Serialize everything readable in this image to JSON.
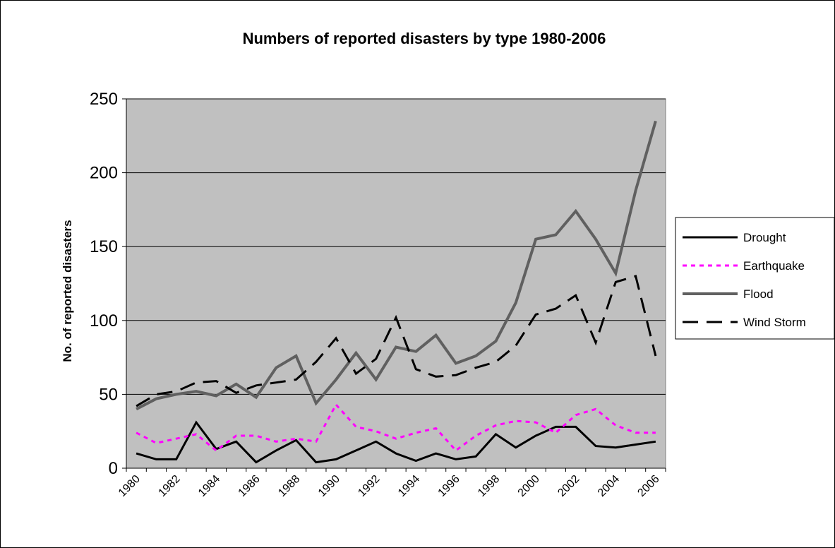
{
  "chart_data": {
    "type": "line",
    "title": "Numbers of reported disasters by type 1980-2006",
    "xlabel": "",
    "ylabel": "No. of reported disasters",
    "ylim": [
      0,
      250
    ],
    "yticks": [
      "0",
      "50",
      "100",
      "150",
      "200",
      "250"
    ],
    "xtick_labels": [
      "1980",
      "1982",
      "1984",
      "1986",
      "1988",
      "1990",
      "1992",
      "1994",
      "1996",
      "1998",
      "2000",
      "2002",
      "2004",
      "2006"
    ],
    "x": [
      1980,
      1981,
      1982,
      1983,
      1984,
      1985,
      1986,
      1987,
      1988,
      1989,
      1990,
      1991,
      1992,
      1993,
      1994,
      1995,
      1996,
      1997,
      1998,
      1999,
      2000,
      2001,
      2002,
      2003,
      2004,
      2005,
      2006
    ],
    "grid": "horizontal",
    "background": "#c0c0c0",
    "legend_position": "right",
    "series": [
      {
        "name": "Drought",
        "color": "#000000",
        "style": "solid",
        "values": [
          10,
          6,
          6,
          31,
          13,
          18,
          4,
          12,
          19,
          4,
          6,
          12,
          18,
          10,
          5,
          10,
          6,
          8,
          23,
          14,
          22,
          28,
          28,
          15,
          14,
          16,
          18
        ]
      },
      {
        "name": "Earthquake",
        "color": "#ff00ff",
        "style": "dotted",
        "values": [
          24,
          17,
          20,
          23,
          12,
          22,
          22,
          18,
          20,
          18,
          43,
          28,
          25,
          20,
          24,
          27,
          12,
          22,
          29,
          32,
          31,
          24,
          36,
          40,
          29,
          24,
          24
        ]
      },
      {
        "name": "Flood",
        "color": "#606060",
        "style": "solid",
        "values": [
          40,
          47,
          50,
          52,
          49,
          57,
          48,
          68,
          76,
          44,
          60,
          78,
          60,
          82,
          79,
          90,
          71,
          76,
          86,
          112,
          155,
          158,
          174,
          155,
          132,
          188,
          235
        ]
      },
      {
        "name": "Wind Storm",
        "color": "#000000",
        "style": "dashed",
        "values": [
          42,
          50,
          52,
          58,
          59,
          51,
          56,
          58,
          60,
          72,
          88,
          64,
          74,
          102,
          67,
          62,
          63,
          68,
          72,
          83,
          104,
          108,
          117,
          85,
          126,
          130,
          76
        ]
      }
    ]
  }
}
